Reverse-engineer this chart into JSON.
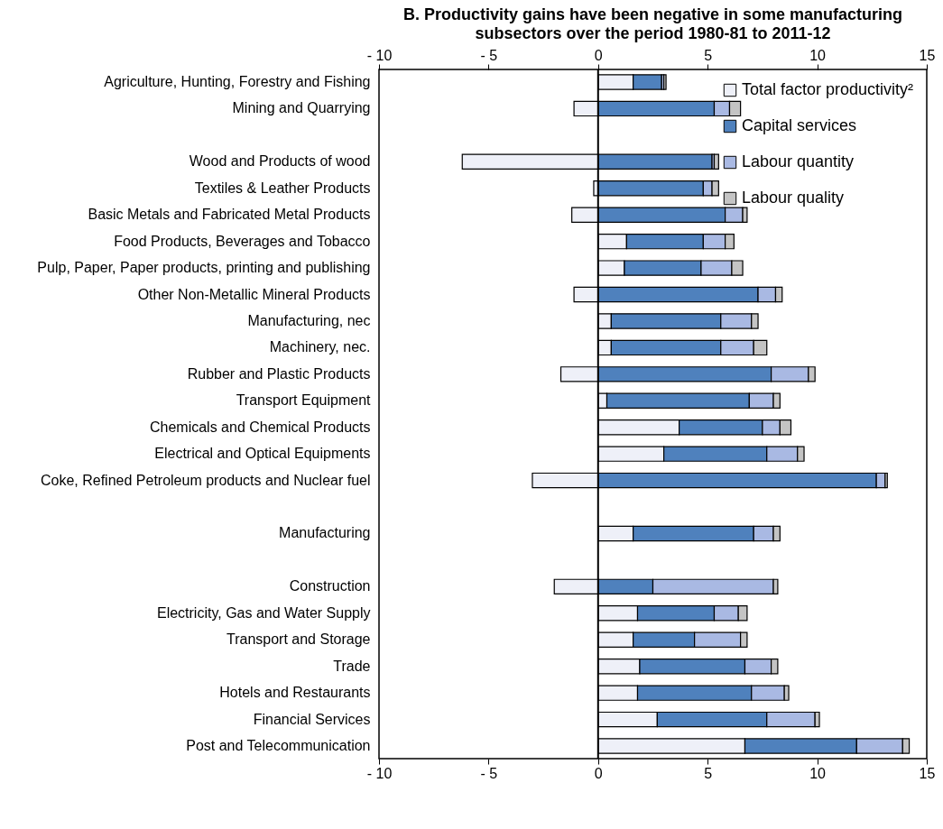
{
  "chart_data": {
    "type": "bar",
    "orientation": "horizontal",
    "stacked": true,
    "title": "B. Productivity gains have been negative in some manufacturing subsectors over the period 1980-81 to 2011-12",
    "categories": [
      "Agriculture, Hunting, Forestry and Fishing",
      "Mining and Quarrying",
      null,
      "Wood and Products of wood",
      "Textiles & Leather Products",
      "Basic Metals and Fabricated Metal Products",
      "Food Products, Beverages and Tobacco",
      "Pulp, Paper, Paper products, printing and publishing",
      "Other Non-Metallic Mineral Products",
      "Manufacturing, nec",
      "Machinery, nec.",
      "Rubber and Plastic Products",
      "Transport Equipment",
      "Chemicals and Chemical Products",
      "Electrical and Optical Equipments",
      "Coke, Refined Petroleum products and Nuclear fuel",
      null,
      "Manufacturing",
      null,
      "Construction",
      "Electricity, Gas and Water Supply",
      "Transport and Storage",
      "Trade",
      "Hotels and Restaurants",
      "Financial Services",
      "Post and Telecommunication"
    ],
    "series": [
      {
        "name": "Total factor productivity²",
        "color": "#eef0f8",
        "values": [
          1.6,
          -1.1,
          null,
          -6.2,
          -0.2,
          -1.2,
          1.3,
          1.2,
          -1.1,
          0.6,
          0.6,
          -1.7,
          0.4,
          3.7,
          3.0,
          -3.0,
          null,
          1.6,
          null,
          -2.0,
          1.8,
          1.6,
          1.9,
          1.8,
          2.7,
          6.7
        ]
      },
      {
        "name": "Capital services",
        "color": "#4f81bd",
        "values": [
          1.3,
          5.3,
          null,
          5.2,
          4.8,
          5.8,
          3.5,
          3.5,
          7.3,
          5.0,
          5.0,
          7.9,
          6.5,
          3.8,
          4.7,
          12.7,
          null,
          5.5,
          null,
          2.5,
          3.5,
          2.8,
          4.8,
          5.2,
          5.0,
          5.1
        ]
      },
      {
        "name": "Labour quantity",
        "color": "#a9b9e3",
        "values": [
          0.1,
          0.7,
          null,
          0.1,
          0.4,
          0.8,
          1.0,
          1.4,
          0.8,
          1.4,
          1.5,
          1.7,
          1.1,
          0.8,
          1.4,
          0.4,
          null,
          0.9,
          null,
          5.5,
          1.1,
          2.1,
          1.2,
          1.5,
          2.2,
          2.1
        ]
      },
      {
        "name": "Labour quality",
        "color": "#c4c4c4",
        "values": [
          0.1,
          0.5,
          null,
          0.2,
          0.3,
          0.2,
          0.4,
          0.5,
          0.3,
          0.3,
          0.6,
          0.3,
          0.3,
          0.5,
          0.3,
          0.1,
          null,
          0.3,
          null,
          0.2,
          0.4,
          0.3,
          0.3,
          0.2,
          0.2,
          0.3
        ]
      }
    ],
    "xlim": [
      -10,
      15
    ],
    "xticks": [
      {
        "value": -10,
        "label": "- 10"
      },
      {
        "value": -5,
        "label": "- 5"
      },
      0,
      5,
      10,
      15
    ],
    "x2lim": [
      -10,
      15
    ],
    "x2ticks": [
      {
        "value": -10,
        "label": "- 10"
      },
      {
        "value": -5,
        "label": "- 5"
      },
      0,
      5,
      10,
      15
    ],
    "ref_lines": [
      {
        "axis": "x",
        "value": 0
      }
    ],
    "grid": false,
    "legend": "top right"
  }
}
